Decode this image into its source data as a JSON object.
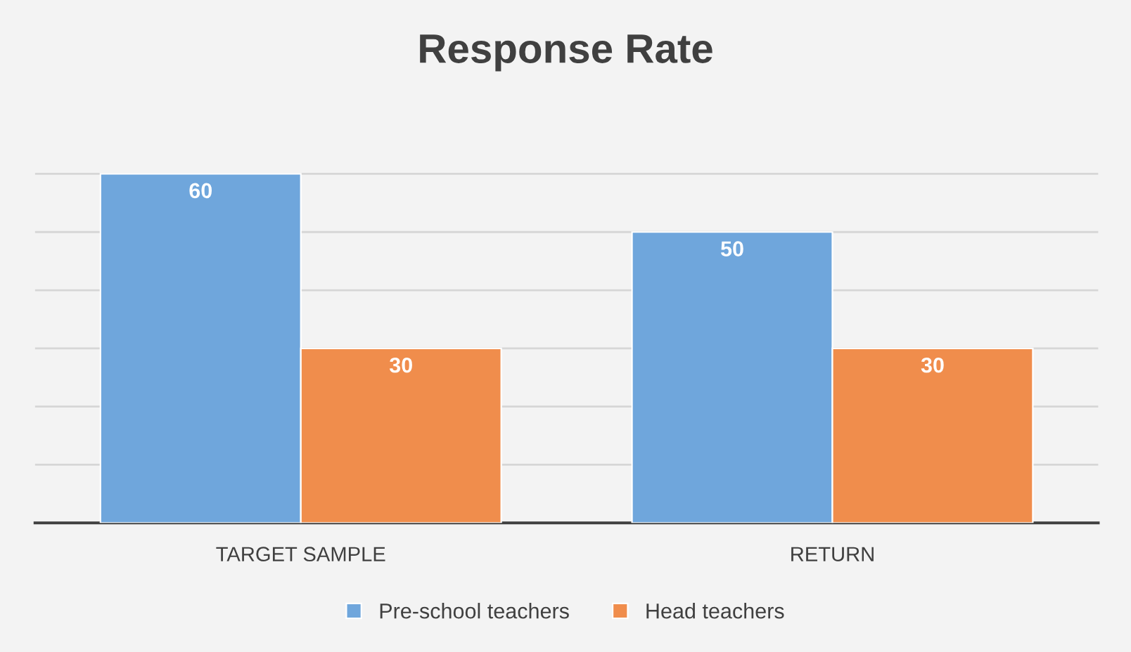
{
  "chart_data": {
    "type": "bar",
    "title": "Response Rate",
    "categories": [
      "TARGET SAMPLE",
      "RETURN"
    ],
    "series": [
      {
        "name": "Pre-school teachers",
        "color": "#6fa6dc",
        "values": [
          60,
          50
        ]
      },
      {
        "name": "Head teachers",
        "color": "#f08d4c",
        "values": [
          30,
          30
        ]
      }
    ],
    "tick_labels": "x",
    "grid": "y",
    "legend": "bottom",
    "data_labels": true
  }
}
